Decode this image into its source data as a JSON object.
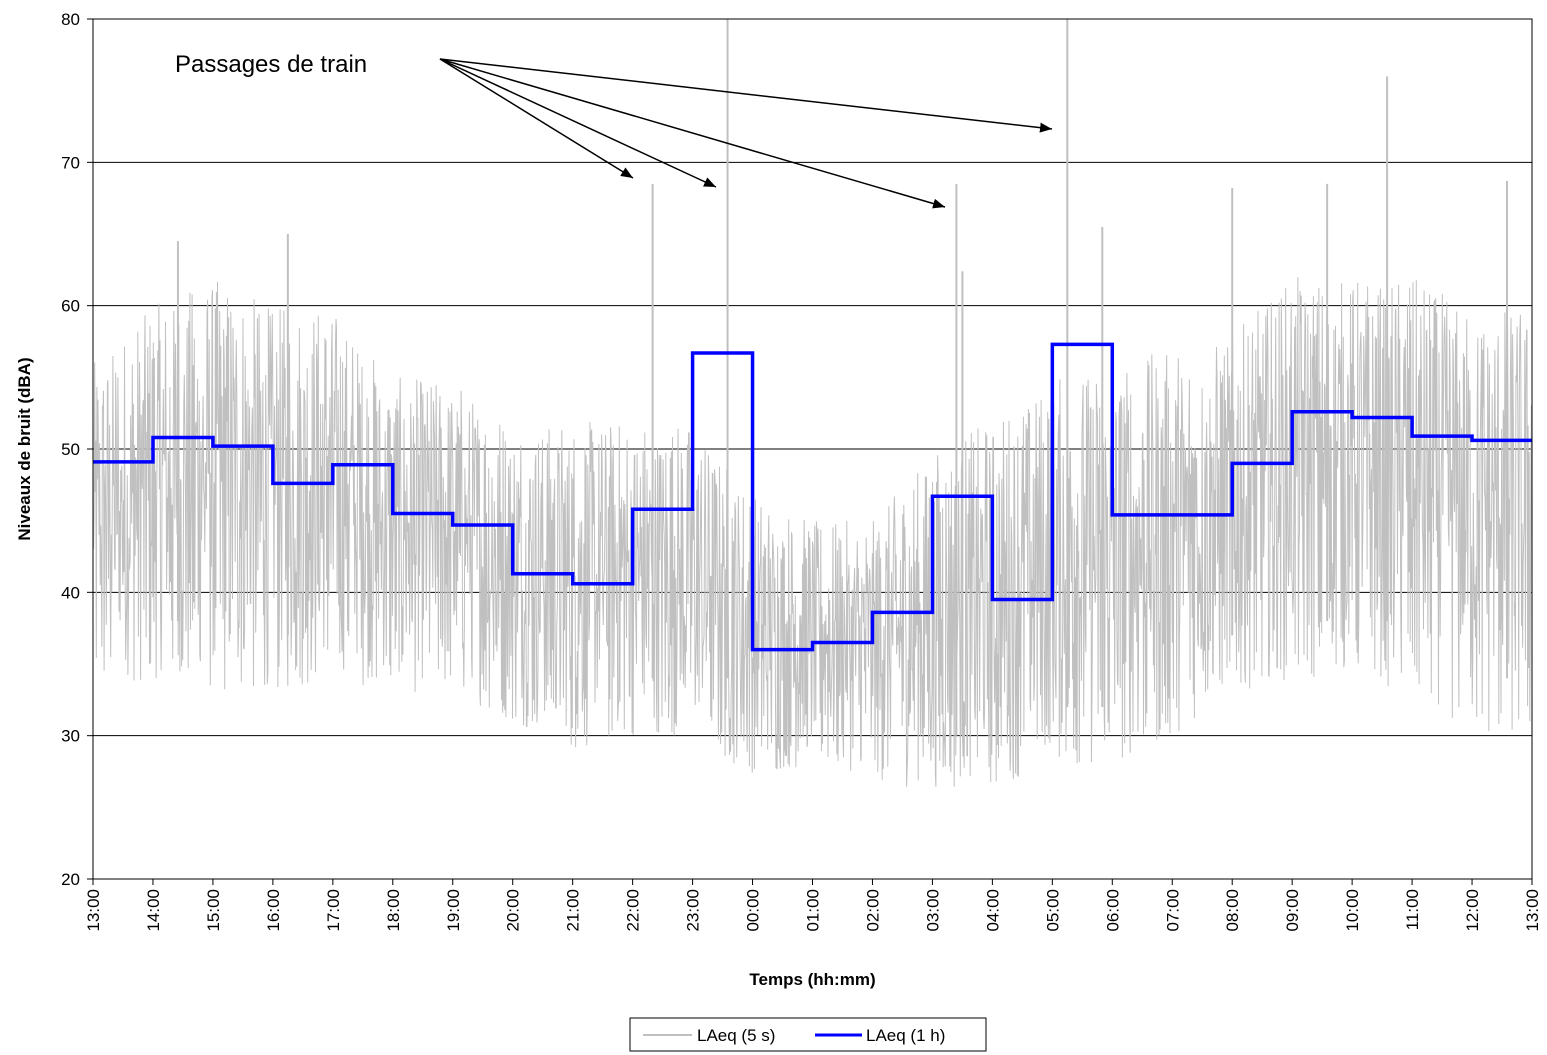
{
  "chart_data": {
    "type": "line",
    "xlabel": "Temps (hh:mm)",
    "ylabel": "Niveaux de bruit (dBA)",
    "ylim": [
      20,
      80
    ],
    "y_ticks": [
      "20",
      "30",
      "40",
      "50",
      "60",
      "70",
      "80"
    ],
    "x_tick_labels": [
      "13:00",
      "14:00",
      "15:00",
      "16:00",
      "17:00",
      "18:00",
      "19:00",
      "20:00",
      "21:00",
      "22:00",
      "23:00",
      "00:00",
      "01:00",
      "02:00",
      "03:00",
      "04:00",
      "05:00",
      "06:00",
      "07:00",
      "08:00",
      "09:00",
      "10:00",
      "11:00",
      "12:00",
      "13:00"
    ],
    "grid": "horizontal",
    "legend_placement": "bottom-center",
    "annotation": {
      "text": "Passages de train",
      "targets": [
        "22:20",
        "23:25",
        "03:11",
        "05:00"
      ]
    },
    "series": [
      {
        "name": "LAeq (5 s)",
        "color": "#c0c0c0",
        "style": "dense-noise",
        "envelope": [
          {
            "hour": "13:00",
            "low": 33,
            "high": 56
          },
          {
            "hour": "14:00",
            "low": 34,
            "high": 60
          },
          {
            "hour": "15:00",
            "low": 33,
            "high": 62
          },
          {
            "hour": "16:00",
            "low": 33,
            "high": 60
          },
          {
            "hour": "17:00",
            "low": 34,
            "high": 60
          },
          {
            "hour": "18:00",
            "low": 33,
            "high": 55
          },
          {
            "hour": "19:00",
            "low": 33,
            "high": 55
          },
          {
            "hour": "20:00",
            "low": 31,
            "high": 52
          },
          {
            "hour": "21:00",
            "low": 29,
            "high": 52
          },
          {
            "hour": "22:00",
            "low": 30,
            "high": 52
          },
          {
            "hour": "23:00",
            "low": 30,
            "high": 52
          },
          {
            "hour": "00:00",
            "low": 27,
            "high": 47
          },
          {
            "hour": "01:00",
            "low": 28,
            "high": 45
          },
          {
            "hour": "02:00",
            "low": 27,
            "high": 45
          },
          {
            "hour": "03:00",
            "low": 26,
            "high": 50
          },
          {
            "hour": "04:00",
            "low": 26,
            "high": 52
          },
          {
            "hour": "05:00",
            "low": 28,
            "high": 55
          },
          {
            "hour": "06:00",
            "low": 28,
            "high": 56
          },
          {
            "hour": "07:00",
            "low": 30,
            "high": 57
          },
          {
            "hour": "08:00",
            "low": 33,
            "high": 58
          },
          {
            "hour": "09:00",
            "low": 34,
            "high": 62
          },
          {
            "hour": "10:00",
            "low": 34,
            "high": 62
          },
          {
            "hour": "11:00",
            "low": 33,
            "high": 62
          },
          {
            "hour": "12:00",
            "low": 30,
            "high": 60
          }
        ],
        "peaks": [
          {
            "x": "22:20",
            "y": 68.5
          },
          {
            "x": "23:35",
            "y": 80
          },
          {
            "x": "03:24",
            "y": 68.5
          },
          {
            "x": "05:15",
            "y": 80
          },
          {
            "x": "10:35",
            "y": 76
          },
          {
            "x": "14:25",
            "y": 64.5
          },
          {
            "x": "16:15",
            "y": 65
          },
          {
            "x": "09:35",
            "y": 68.5
          },
          {
            "x": "12:35",
            "y": 68.7
          },
          {
            "x": "08:00",
            "y": 68.2
          },
          {
            "x": "05:50",
            "y": 65.5
          },
          {
            "x": "03:30",
            "y": 62.4
          }
        ]
      },
      {
        "name": "LAeq (1 h)",
        "color": "#0000ff",
        "style": "step",
        "x": [
          "13:00",
          "14:00",
          "15:00",
          "16:00",
          "17:00",
          "18:00",
          "19:00",
          "20:00",
          "21:00",
          "22:00",
          "23:00",
          "00:00",
          "01:00",
          "02:00",
          "03:00",
          "04:00",
          "05:00",
          "06:00",
          "07:00",
          "08:00",
          "09:00",
          "10:00",
          "11:00",
          "12:00"
        ],
        "values": [
          49.1,
          50.8,
          50.2,
          47.6,
          48.9,
          45.5,
          44.7,
          41.3,
          40.6,
          45.8,
          56.7,
          36.0,
          36.5,
          38.6,
          46.7,
          39.5,
          57.3,
          45.4,
          45.4,
          49.0,
          52.6,
          52.2,
          50.9,
          50.6
        ]
      }
    ]
  }
}
